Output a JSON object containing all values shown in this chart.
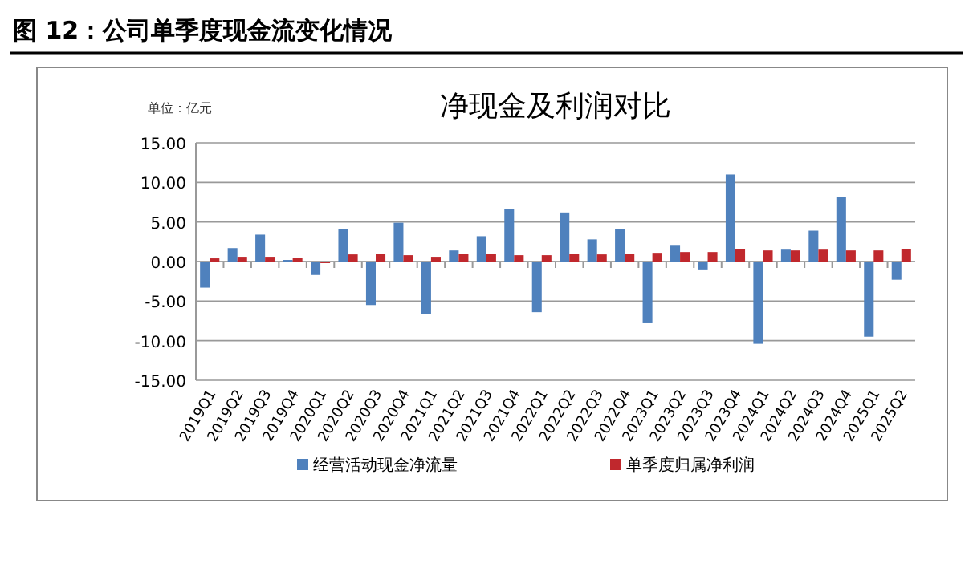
{
  "chart_data": {
    "type": "bar",
    "title": "图 12：公司单季度现金流变化情况",
    "subtitle": "净现金及利润对比",
    "annotations": [
      "单位：亿元"
    ],
    "categories": [
      "2019Q1",
      "2019Q2",
      "2019Q3",
      "2019Q4",
      "2020Q1",
      "2020Q2",
      "2020Q3",
      "2020Q4",
      "2021Q1",
      "2021Q2",
      "2021Q3",
      "2021Q4",
      "2022Q1",
      "2022Q2",
      "2022Q3",
      "2022Q4",
      "2023Q1",
      "2023Q2",
      "2023Q3",
      "2023Q4",
      "2024Q1",
      "2024Q2",
      "2024Q3",
      "2024Q4",
      "2025Q1",
      "2025Q2"
    ],
    "series": [
      {
        "name": "经营活动现金净流量",
        "color": "#4f81bd",
        "values": [
          -3.3,
          1.7,
          3.4,
          0.2,
          -1.7,
          4.1,
          -5.5,
          4.9,
          -6.6,
          1.4,
          3.2,
          6.6,
          -6.4,
          6.2,
          2.8,
          4.1,
          -7.8,
          2.0,
          -1.0,
          11.0,
          -10.4,
          1.5,
          3.9,
          8.2,
          -9.5,
          -2.3
        ]
      },
      {
        "name": "单季度归属净利润",
        "color": "#c0282d",
        "values": [
          0.4,
          0.6,
          0.6,
          0.5,
          -0.2,
          0.9,
          1.0,
          0.8,
          0.6,
          1.0,
          1.0,
          0.8,
          0.8,
          1.0,
          0.9,
          1.0,
          1.1,
          1.2,
          1.2,
          1.6,
          1.4,
          1.4,
          1.5,
          1.4,
          1.4,
          1.6
        ]
      }
    ],
    "ylim": [
      -15,
      15
    ],
    "yticks": [
      {
        "value": -15,
        "label": "-15.00"
      },
      {
        "value": -10,
        "label": "-10.00"
      },
      {
        "value": -5,
        "label": "-5.00"
      },
      {
        "value": 0,
        "label": "0.00"
      },
      {
        "value": 5,
        "label": "5.00"
      },
      {
        "value": 10,
        "label": "10.00"
      },
      {
        "value": 15,
        "label": "15.00"
      }
    ],
    "grid": "y",
    "legend": "bottom"
  }
}
